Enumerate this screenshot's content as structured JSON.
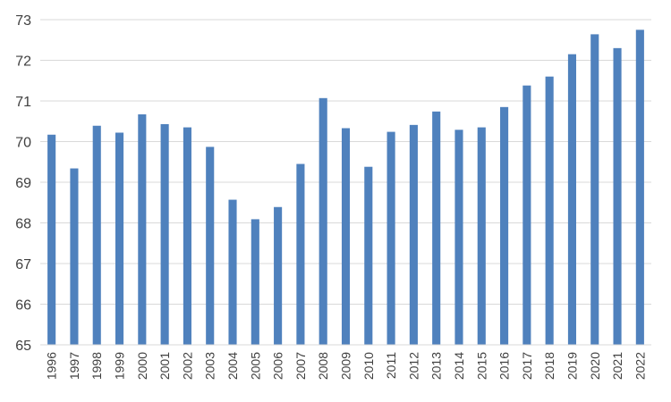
{
  "chart_data": {
    "type": "bar",
    "title": "",
    "xlabel": "",
    "ylabel": "",
    "ylim": [
      65,
      73
    ],
    "yticks": [
      65,
      66,
      67,
      68,
      69,
      70,
      71,
      72,
      73
    ],
    "grid": "horizontal",
    "legend": "none",
    "bar_color": "#4f81bd",
    "categories": [
      "1996",
      "1997",
      "1998",
      "1999",
      "2000",
      "2001",
      "2002",
      "2003",
      "2004",
      "2005",
      "2006",
      "2007",
      "2008",
      "2009",
      "2010",
      "2011",
      "2012",
      "2013",
      "2014",
      "2015",
      "2016",
      "2017",
      "2018",
      "2019",
      "2020",
      "2021",
      "2022"
    ],
    "values": [
      70.17,
      69.34,
      70.39,
      70.22,
      70.67,
      70.43,
      70.35,
      69.87,
      68.57,
      68.09,
      68.39,
      69.45,
      71.07,
      70.33,
      69.38,
      70.24,
      70.41,
      70.74,
      70.29,
      70.35,
      70.85,
      71.38,
      71.6,
      72.15,
      72.64,
      72.3,
      72.75
    ]
  }
}
